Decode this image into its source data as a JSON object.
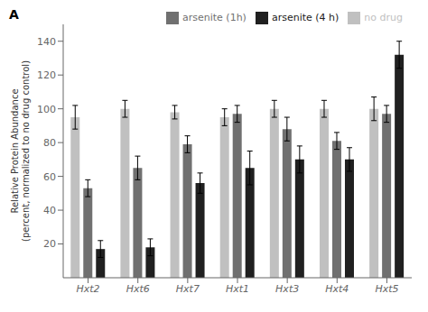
{
  "chart_data": {
    "type": "bar",
    "title": "A",
    "categories": [
      "Hxt2",
      "Hxt6",
      "Hxt7",
      "Hxt1",
      "Hxt3",
      "Hxt4",
      "Hxt5"
    ],
    "series": [
      {
        "name": "no drug",
        "color": "#c0c0c0",
        "values": [
          95,
          100,
          98,
          95,
          100,
          100,
          100
        ],
        "errors": [
          7,
          5,
          4,
          5,
          5,
          5,
          7
        ]
      },
      {
        "name": "arsenite (1h)",
        "color": "#707070",
        "values": [
          53,
          65,
          79,
          97,
          88,
          81,
          97
        ],
        "errors": [
          5,
          7,
          5,
          5,
          7,
          5,
          5
        ]
      },
      {
        "name": "arsenite (4 h)",
        "color": "#202020",
        "values": [
          17,
          18,
          56,
          65,
          70,
          70,
          132
        ],
        "errors": [
          5,
          5,
          6,
          10,
          8,
          7,
          8
        ]
      }
    ],
    "ylabel": "Relative Protein Abundance\n(percent, normalized to no drug control)",
    "ylim": [
      0,
      150
    ],
    "yticks": [
      20,
      40,
      60,
      80,
      100,
      120,
      140
    ],
    "legend": "top"
  }
}
